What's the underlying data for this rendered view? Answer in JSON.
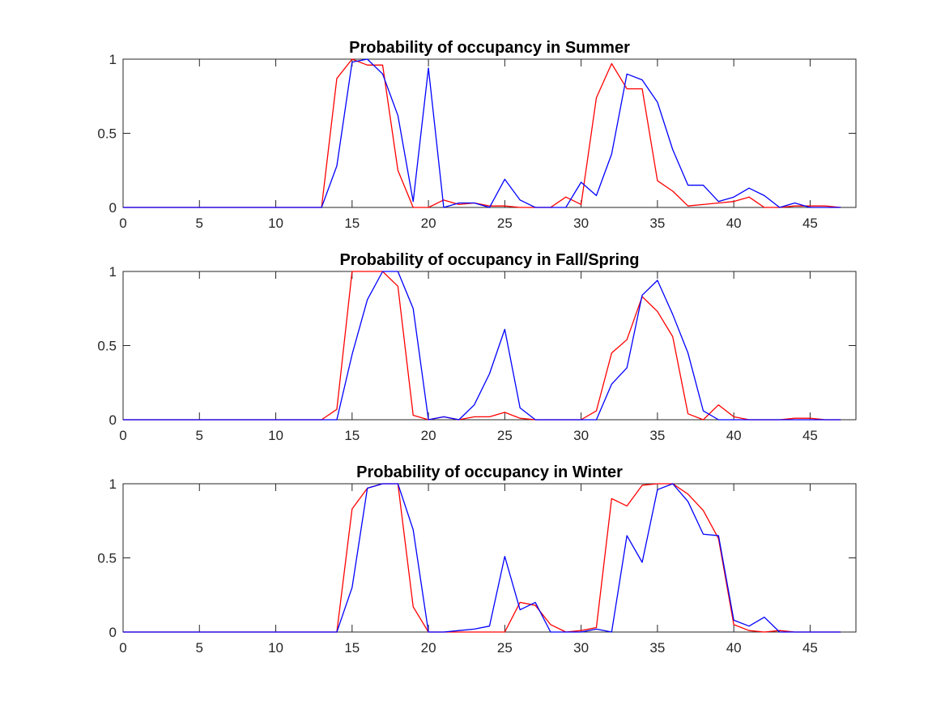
{
  "colors": {
    "series_1": "#ff0000",
    "series_2": "#0000ff",
    "axes": "#262626",
    "background": "#ffffff"
  },
  "chart_data": [
    {
      "type": "line",
      "title": "Probability of occupancy in Summer",
      "xlabel": "",
      "ylabel": "",
      "xlim": [
        0,
        48
      ],
      "ylim": [
        0,
        1
      ],
      "xticks": [
        0,
        5,
        10,
        15,
        20,
        25,
        30,
        35,
        40,
        45
      ],
      "yticks": [
        0,
        0.5,
        1
      ],
      "xtick_labels": [
        "0",
        "5",
        "10",
        "15",
        "20",
        "25",
        "30",
        "35",
        "40",
        "45"
      ],
      "ytick_labels": [
        "0",
        "0.5",
        "1"
      ],
      "grid": false,
      "legend": "none",
      "x": [
        0,
        1,
        2,
        3,
        4,
        5,
        6,
        7,
        8,
        9,
        10,
        11,
        12,
        13,
        14,
        15,
        16,
        17,
        18,
        19,
        20,
        21,
        22,
        23,
        24,
        25,
        26,
        27,
        28,
        29,
        30,
        31,
        32,
        33,
        34,
        35,
        36,
        37,
        38,
        39,
        40,
        41,
        42,
        43,
        44,
        45,
        46,
        47
      ],
      "series": [
        {
          "color": "#ff0000",
          "values": [
            0,
            0,
            0,
            0,
            0,
            0,
            0,
            0,
            0,
            0,
            0,
            0,
            0,
            0,
            0.87,
            1.0,
            0.96,
            0.96,
            0.25,
            0.0,
            0.0,
            0.05,
            0.02,
            0.03,
            0.01,
            0.01,
            0.0,
            0.0,
            0.0,
            0.07,
            0.02,
            0.74,
            0.97,
            0.8,
            0.8,
            0.18,
            0.11,
            0.01,
            0.02,
            0.03,
            0.04,
            0.07,
            0.0,
            0.0,
            0.01,
            0.01,
            0.01,
            0.0
          ]
        },
        {
          "color": "#0000ff",
          "values": [
            0,
            0,
            0,
            0,
            0,
            0,
            0,
            0,
            0,
            0,
            0,
            0,
            0,
            0,
            0.28,
            0.98,
            1.0,
            0.9,
            0.62,
            0.04,
            0.94,
            0.0,
            0.03,
            0.03,
            0.0,
            0.19,
            0.05,
            0.0,
            0.0,
            0.0,
            0.17,
            0.08,
            0.36,
            0.9,
            0.86,
            0.71,
            0.39,
            0.15,
            0.15,
            0.04,
            0.07,
            0.13,
            0.08,
            0.0,
            0.03,
            0.0,
            0.0,
            0.0
          ]
        }
      ]
    },
    {
      "type": "line",
      "title": "Probability of occupancy in Fall/Spring",
      "xlabel": "",
      "ylabel": "",
      "xlim": [
        0,
        48
      ],
      "ylim": [
        0,
        1
      ],
      "xticks": [
        0,
        5,
        10,
        15,
        20,
        25,
        30,
        35,
        40,
        45
      ],
      "yticks": [
        0,
        0.5,
        1
      ],
      "xtick_labels": [
        "0",
        "5",
        "10",
        "15",
        "20",
        "25",
        "30",
        "35",
        "40",
        "45"
      ],
      "ytick_labels": [
        "0",
        "0.5",
        "1"
      ],
      "grid": false,
      "legend": "none",
      "x": [
        0,
        1,
        2,
        3,
        4,
        5,
        6,
        7,
        8,
        9,
        10,
        11,
        12,
        13,
        14,
        15,
        16,
        17,
        18,
        19,
        20,
        21,
        22,
        23,
        24,
        25,
        26,
        27,
        28,
        29,
        30,
        31,
        32,
        33,
        34,
        35,
        36,
        37,
        38,
        39,
        40,
        41,
        42,
        43,
        44,
        45,
        46,
        47
      ],
      "series": [
        {
          "color": "#ff0000",
          "values": [
            0,
            0,
            0,
            0,
            0,
            0,
            0,
            0,
            0,
            0,
            0,
            0,
            0,
            0,
            0.07,
            1.0,
            1.0,
            1.0,
            0.9,
            0.03,
            0.0,
            0.02,
            0.0,
            0.02,
            0.02,
            0.05,
            0.01,
            0.0,
            0.0,
            0.0,
            0.0,
            0.06,
            0.45,
            0.54,
            0.83,
            0.73,
            0.56,
            0.04,
            0.0,
            0.1,
            0.02,
            0.0,
            0.0,
            0.0,
            0.01,
            0.01,
            0.0,
            0.0
          ]
        },
        {
          "color": "#0000ff",
          "values": [
            0,
            0,
            0,
            0,
            0,
            0,
            0,
            0,
            0,
            0,
            0,
            0,
            0,
            0,
            0.0,
            0.44,
            0.81,
            1.0,
            1.0,
            0.75,
            0.0,
            0.02,
            0.0,
            0.1,
            0.31,
            0.61,
            0.08,
            0.0,
            0.0,
            0.0,
            0.0,
            0.0,
            0.24,
            0.35,
            0.84,
            0.94,
            0.71,
            0.45,
            0.06,
            0.0,
            0.0,
            0.0,
            0.0,
            0.0,
            0.0,
            0.0,
            0.0,
            0.0
          ]
        }
      ]
    },
    {
      "type": "line",
      "title": "Probability of occupancy in Winter",
      "xlabel": "",
      "ylabel": "",
      "xlim": [
        0,
        48
      ],
      "ylim": [
        0,
        1
      ],
      "xticks": [
        0,
        5,
        10,
        15,
        20,
        25,
        30,
        35,
        40,
        45
      ],
      "yticks": [
        0,
        0.5,
        1
      ],
      "xtick_labels": [
        "0",
        "5",
        "10",
        "15",
        "20",
        "25",
        "30",
        "35",
        "40",
        "45"
      ],
      "ytick_labels": [
        "0",
        "0.5",
        "1"
      ],
      "grid": false,
      "legend": "none",
      "x": [
        0,
        1,
        2,
        3,
        4,
        5,
        6,
        7,
        8,
        9,
        10,
        11,
        12,
        13,
        14,
        15,
        16,
        17,
        18,
        19,
        20,
        21,
        22,
        23,
        24,
        25,
        26,
        27,
        28,
        29,
        30,
        31,
        32,
        33,
        34,
        35,
        36,
        37,
        38,
        39,
        40,
        41,
        42,
        43,
        44,
        45,
        46,
        47
      ],
      "series": [
        {
          "color": "#ff0000",
          "values": [
            0,
            0,
            0,
            0,
            0,
            0,
            0,
            0,
            0,
            0,
            0,
            0,
            0,
            0,
            0,
            0.83,
            0.97,
            1.0,
            1.0,
            0.17,
            0.0,
            0.0,
            0.0,
            0.0,
            0.0,
            0.0,
            0.2,
            0.18,
            0.05,
            0.0,
            0.01,
            0.03,
            0.9,
            0.85,
            0.99,
            1.0,
            1.0,
            0.93,
            0.82,
            0.63,
            0.05,
            0.01,
            0.0,
            0.01,
            0.0,
            0.0,
            0.0,
            0.0
          ]
        },
        {
          "color": "#0000ff",
          "values": [
            0,
            0,
            0,
            0,
            0,
            0,
            0,
            0,
            0,
            0,
            0,
            0,
            0,
            0,
            0,
            0.3,
            0.97,
            1.0,
            1.0,
            0.69,
            0.0,
            0.0,
            0.01,
            0.02,
            0.04,
            0.51,
            0.15,
            0.2,
            0.0,
            0.0,
            0.0,
            0.02,
            0.0,
            0.65,
            0.47,
            0.96,
            1.0,
            0.88,
            0.66,
            0.65,
            0.08,
            0.04,
            0.1,
            0.0,
            0.0,
            0.0,
            0.0,
            0.0
          ]
        }
      ]
    }
  ]
}
